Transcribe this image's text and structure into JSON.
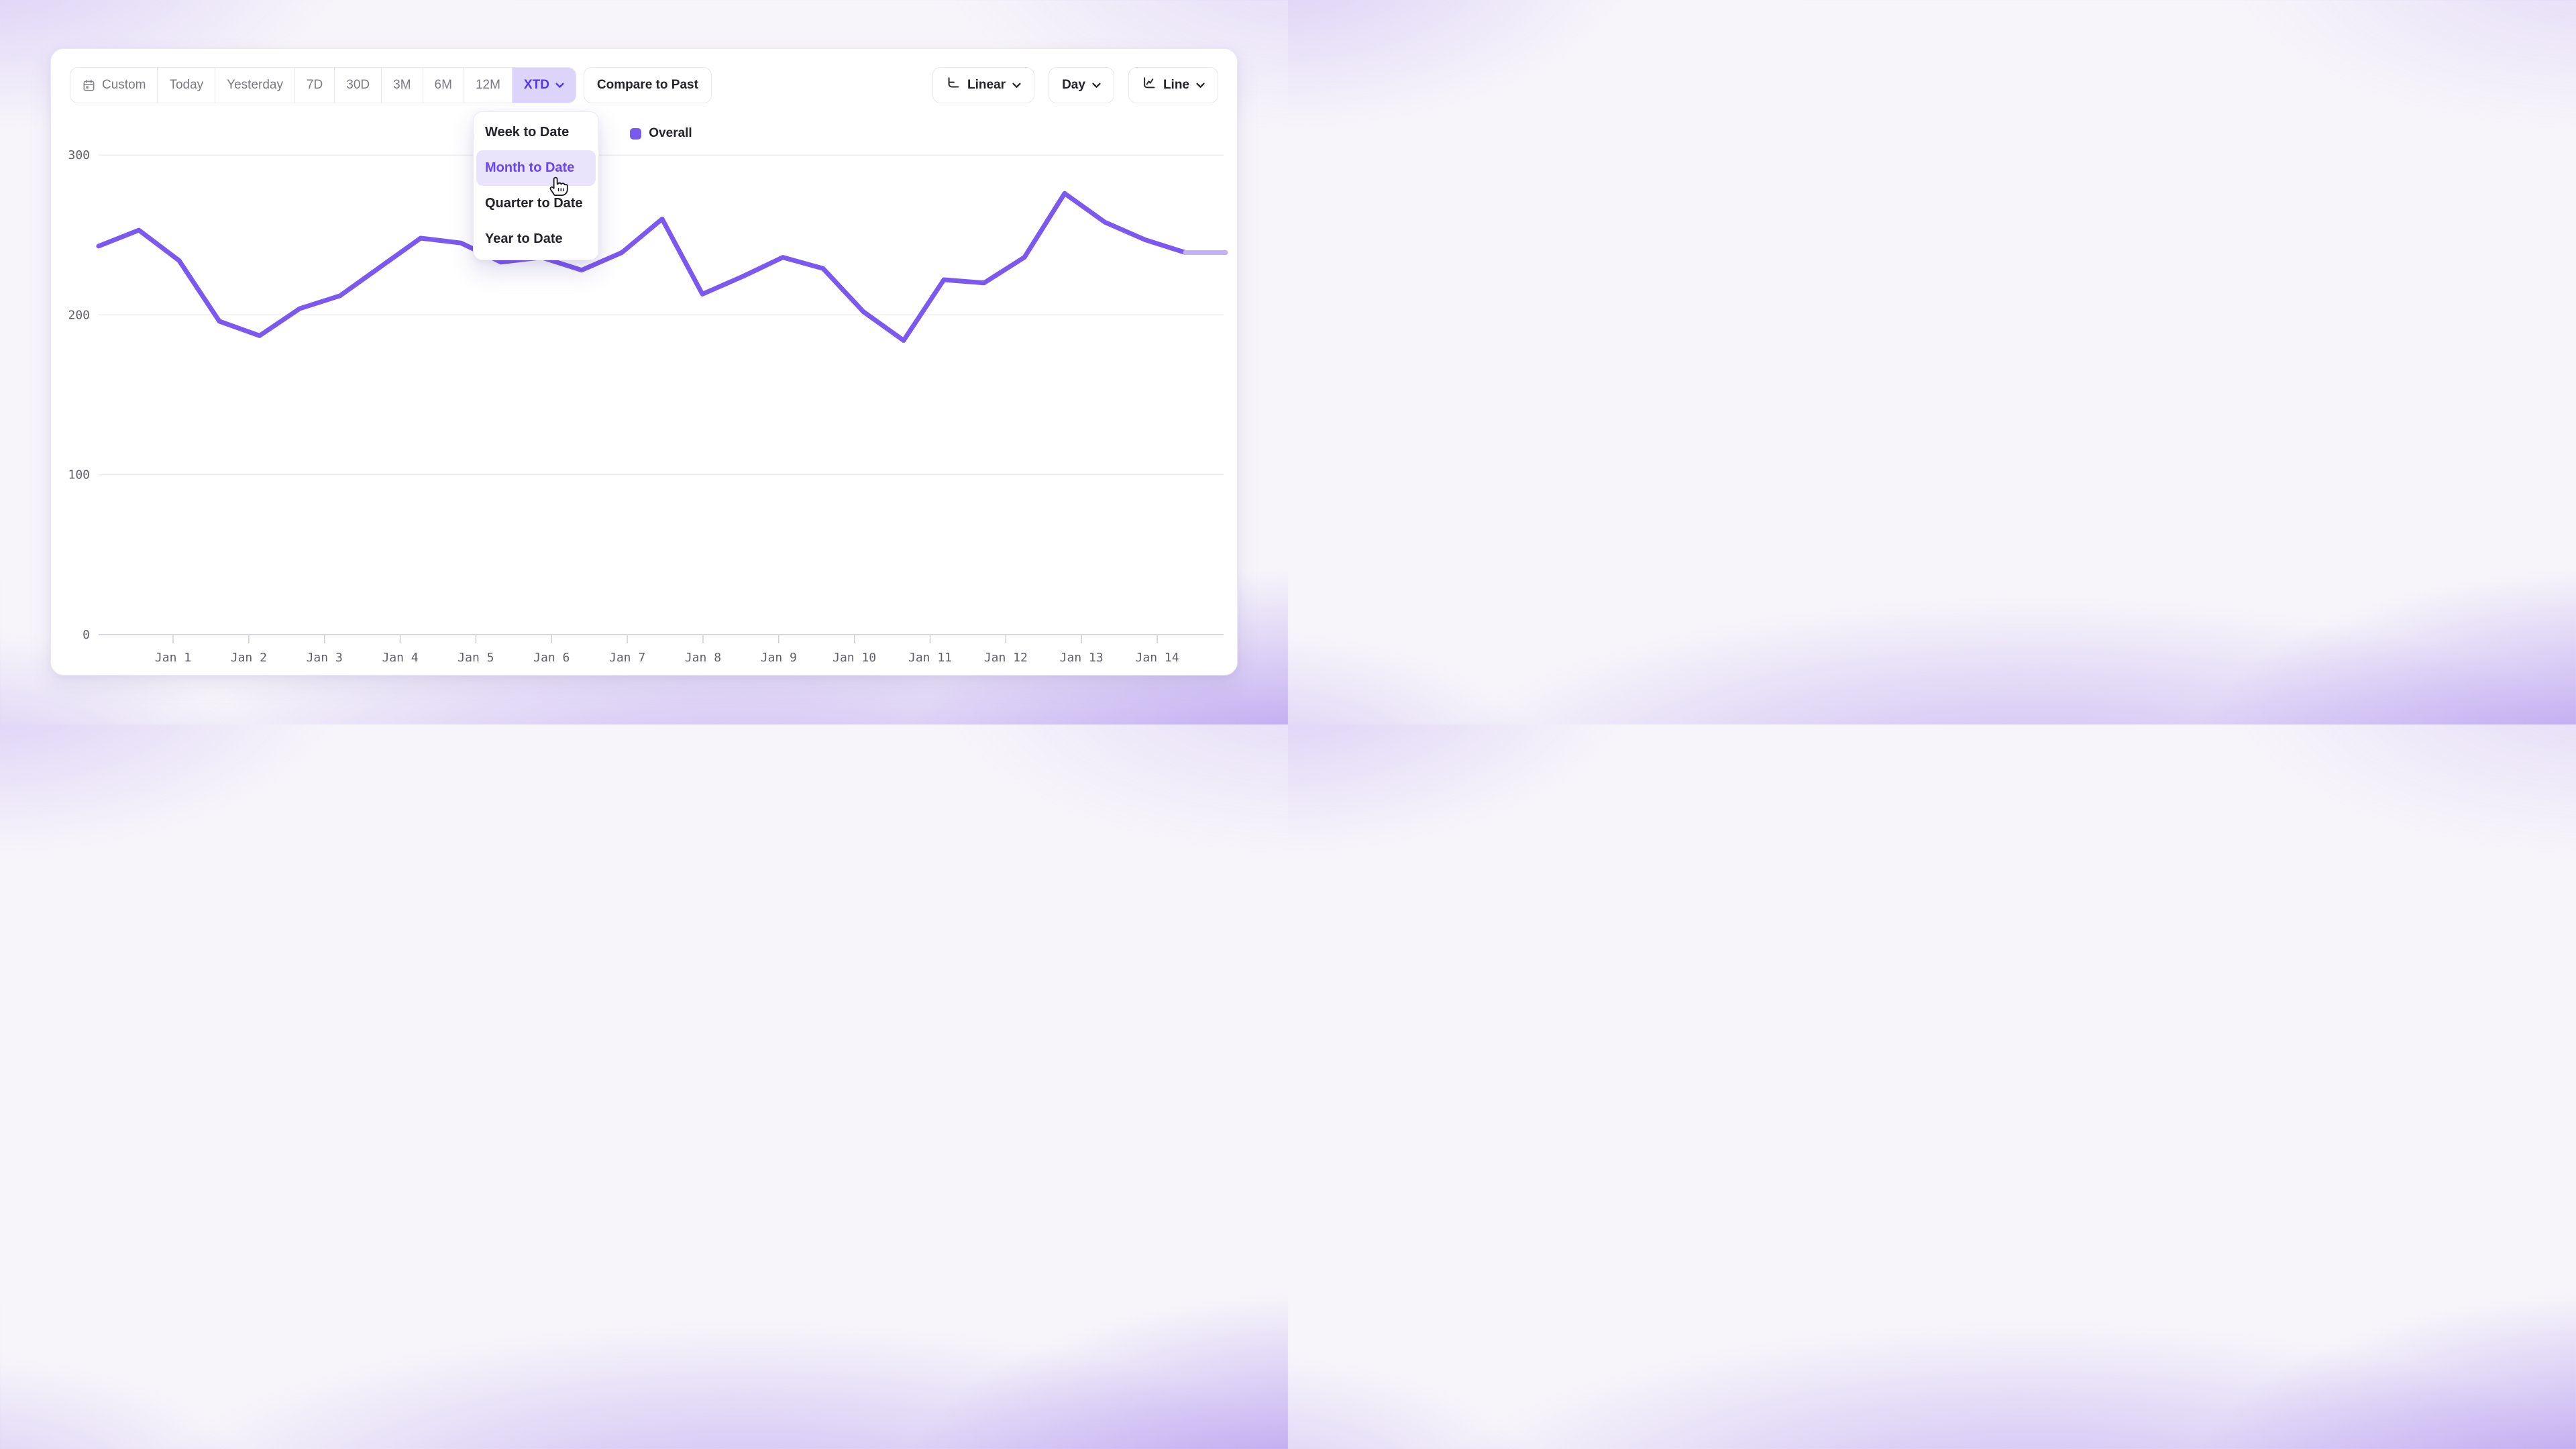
{
  "toolbar": {
    "range_buttons": [
      "Custom",
      "Today",
      "Yesterday",
      "7D",
      "30D",
      "3M",
      "6M",
      "12M",
      "XTD"
    ],
    "selected_range": "XTD",
    "compare_label": "Compare to Past",
    "scale_label": "Linear",
    "granularity_label": "Day",
    "chart_type_label": "Line"
  },
  "dropdown": {
    "items": [
      "Week to Date",
      "Month to Date",
      "Quarter to Date",
      "Year to Date"
    ],
    "highlighted_item": "Month to Date"
  },
  "legend": {
    "label": "Overall",
    "color": "#7b59f0"
  },
  "chart_data": {
    "type": "line",
    "series": [
      {
        "name": "Overall",
        "color": "#7b59f0",
        "values": [
          243,
          253,
          234,
          196,
          187,
          204,
          212,
          230,
          248,
          245,
          233,
          236,
          228,
          239,
          260,
          213,
          224,
          236,
          229,
          202,
          184,
          222,
          220,
          236,
          276,
          258,
          247,
          239,
          239
        ]
      }
    ],
    "x_tick_labels": [
      "Jan 1",
      "Jan 2",
      "Jan 3",
      "Jan 4",
      "Jan 5",
      "Jan 6",
      "Jan 7",
      "Jan 8",
      "Jan 9",
      "Jan 10",
      "Jan 11",
      "Jan 12",
      "Jan 13",
      "Jan 14"
    ],
    "y_ticks": [
      0,
      100,
      200,
      300
    ],
    "ylim": [
      0,
      300
    ],
    "grid": "horizontal",
    "legend_position": "top-center",
    "incomplete_tail": true,
    "incomplete_tail_color": "#c3b2f8",
    "note": "29 evenly spaced points span the plot edge-to-edge; day labels Jan 1-14 sit on axis ticks; the last flat segment is drawn lighter (incomplete period)."
  },
  "colors": {
    "accent": "#5634ee",
    "accent_bg": "#dcd4fb",
    "line": "#7b59f0",
    "menu_highlight_bg": "#eae3fc",
    "menu_highlight_text": "#6946f0",
    "text_dark": "#232329",
    "text_muted": "#7b7983",
    "axis_text": "#615f69",
    "gridline": "#ededf1"
  }
}
